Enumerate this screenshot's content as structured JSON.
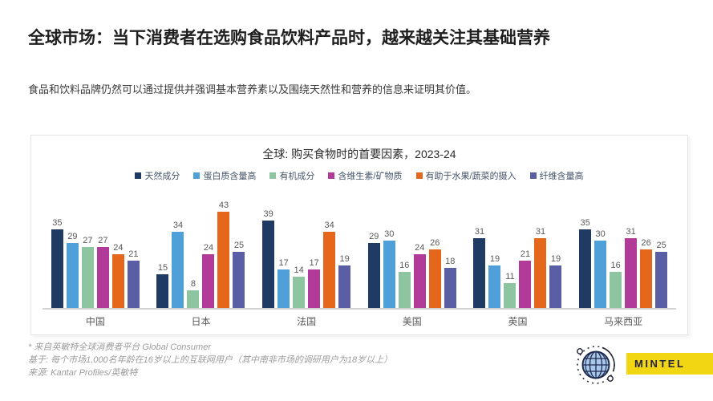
{
  "page": {
    "title": "全球市场：当下消费者在选购食品饮料产品时，越来越关注其基础营养",
    "subtitle": "食品和饮料品牌仍然可以通过提供并强调基本营养素以及围绕天然性和营养的信息来证明其价值。"
  },
  "chart_data": {
    "type": "bar",
    "title": "全球: 购买食物时的首要因素，2023-24",
    "categories": [
      "中国",
      "日本",
      "法国",
      "美国",
      "英国",
      "马来西亚"
    ],
    "series": [
      {
        "name": "天然成分",
        "color": "#1f3a63",
        "values": [
          35,
          15,
          39,
          29,
          31,
          35
        ]
      },
      {
        "name": "蛋白质含量高",
        "color": "#4fa0d8",
        "values": [
          29,
          34,
          17,
          30,
          19,
          30
        ]
      },
      {
        "name": "有机成分",
        "color": "#8cc5a0",
        "values": [
          27,
          8,
          14,
          16,
          11,
          16
        ]
      },
      {
        "name": "含维生素/矿物质",
        "color": "#b23a99",
        "values": [
          27,
          24,
          17,
          24,
          21,
          31
        ]
      },
      {
        "name": "有助于水果/蔬菜的摄入",
        "color": "#e5671c",
        "values": [
          24,
          43,
          34,
          26,
          31,
          26
        ]
      },
      {
        "name": "纤维含量高",
        "color": "#5a5fa5",
        "values": [
          21,
          25,
          19,
          18,
          19,
          25
        ]
      }
    ],
    "ylim": [
      0,
      45
    ],
    "grid": false,
    "legend_position": "top",
    "value_labels": true,
    "axis_line_color": "#d2d2d2",
    "value_label_color": "#595959"
  },
  "footnotes": {
    "line1": "* 来自英敏特全球消费者平台 Global Consumer",
    "line2": "基于: 每个市场1,000名年龄在16岁以上的互联网用户（其中南非市场的调研用户为18岁以上）",
    "line3": "来源: Kantar Profiles/英敏特"
  },
  "branding": {
    "logo_text": "MINTEL",
    "logo_bg": "#f2d513",
    "icon": "globe-icon",
    "globe_fill": "#a9c9ea",
    "globe_stroke": "#1e2b4f"
  }
}
